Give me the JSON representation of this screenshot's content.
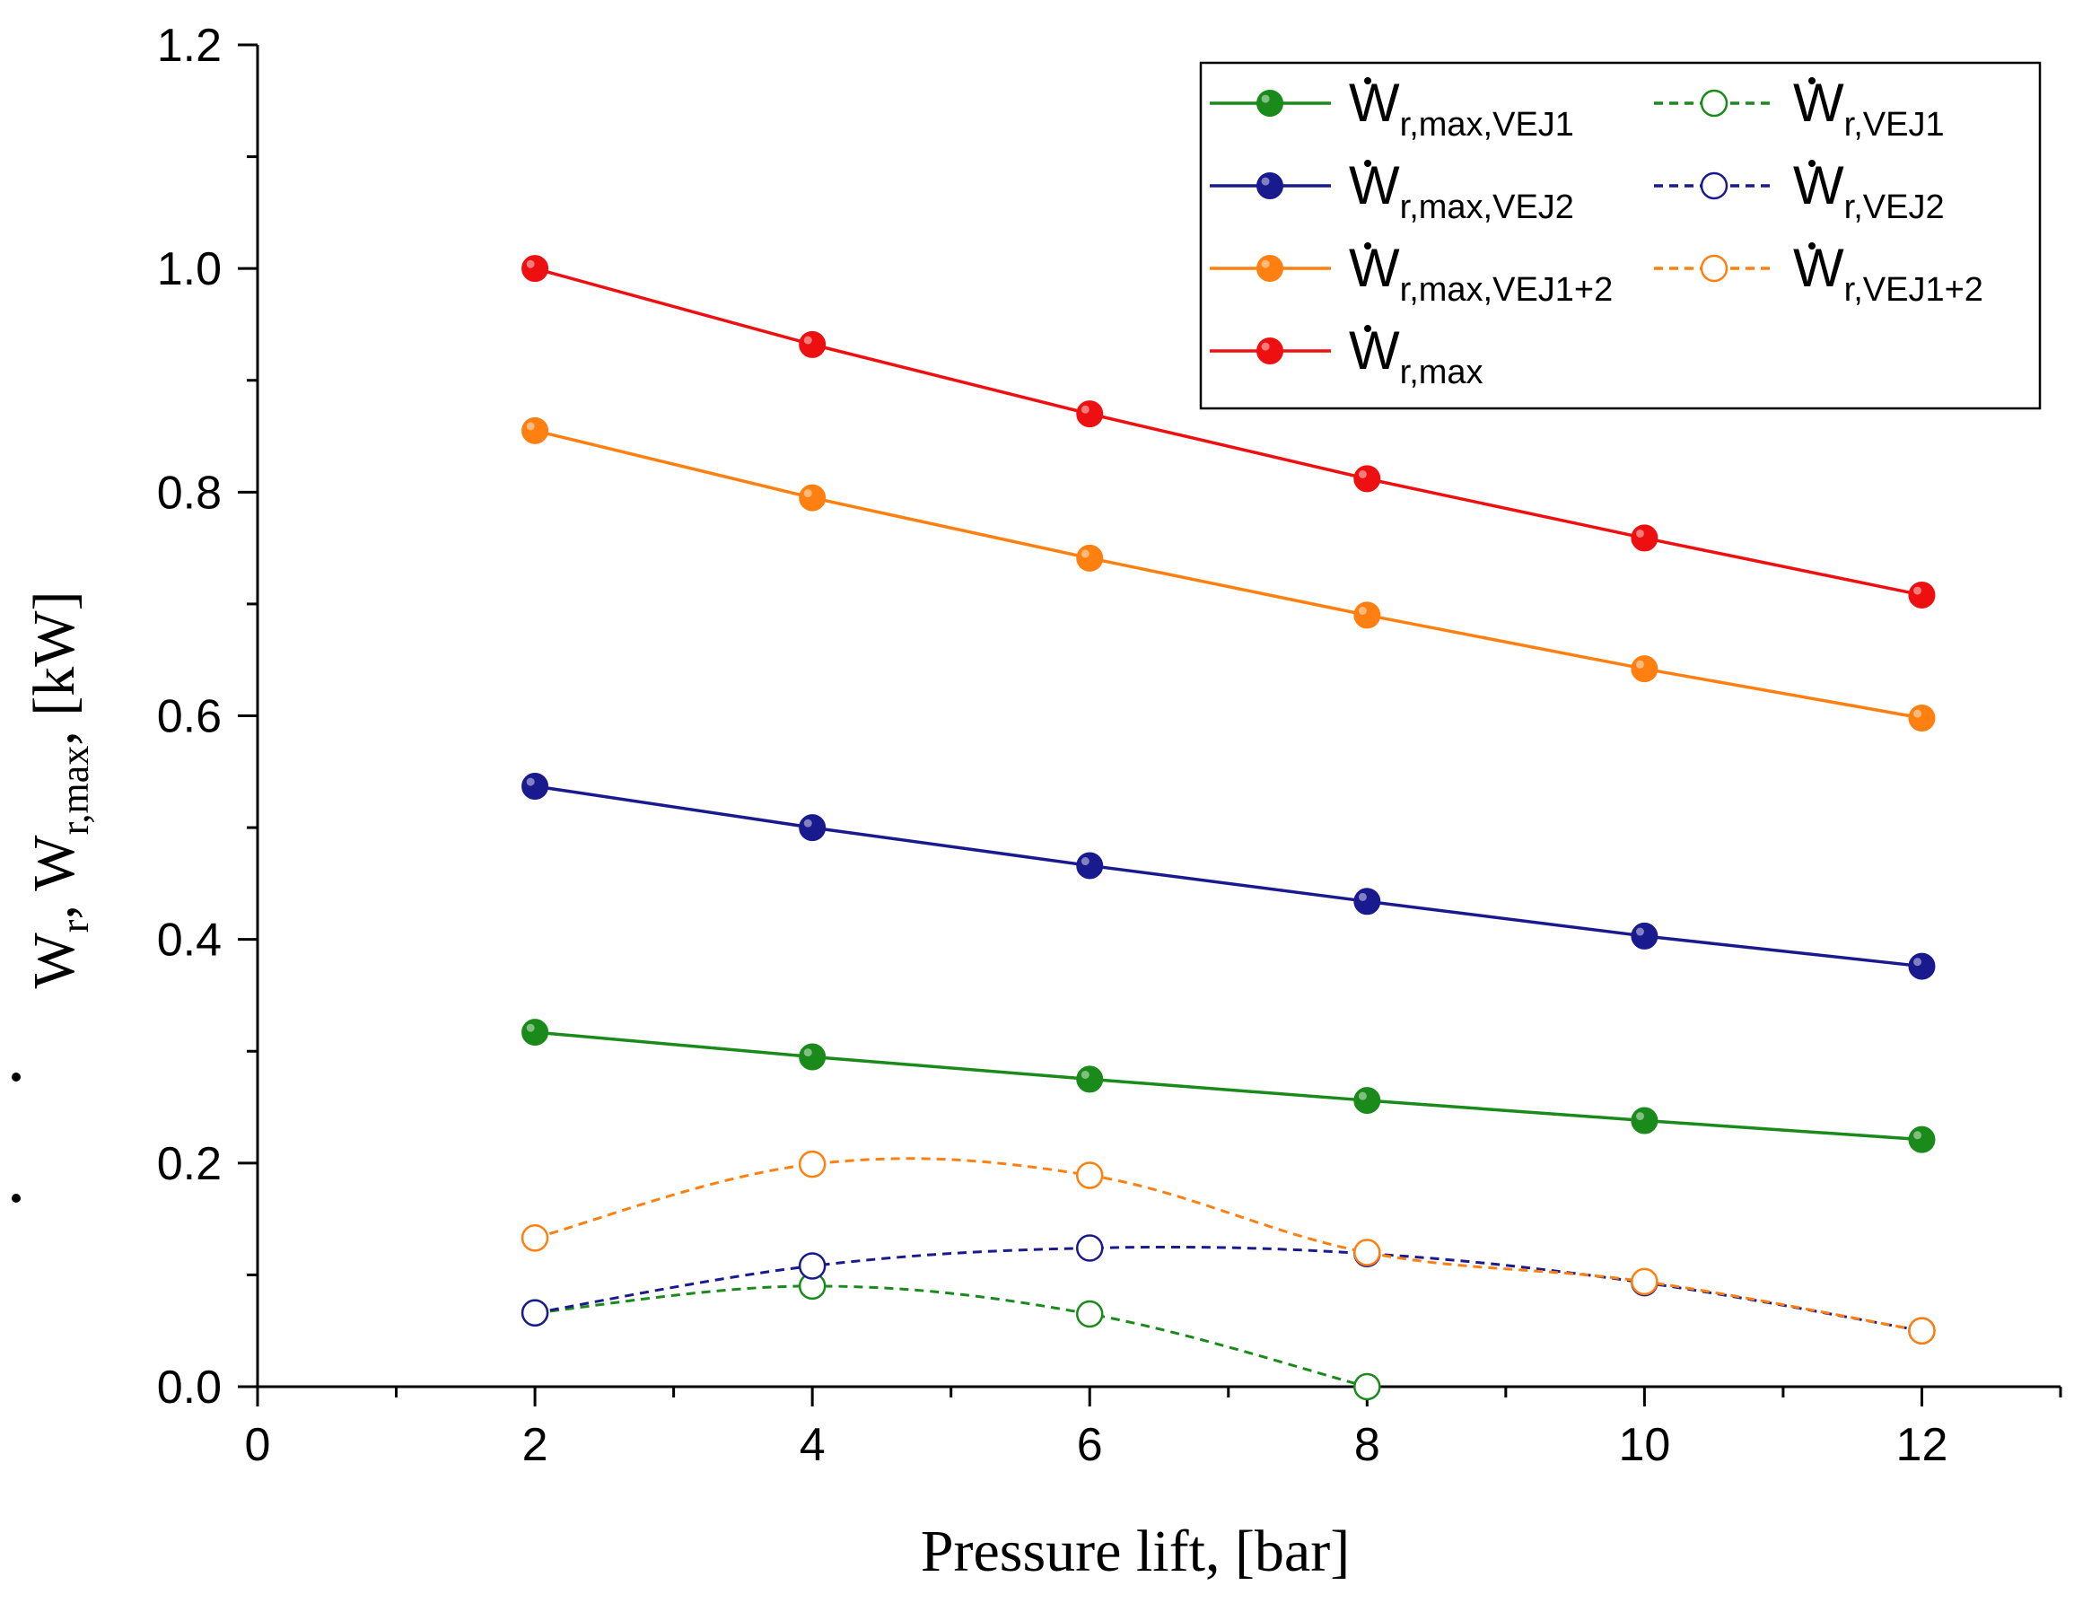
{
  "chart_data": {
    "type": "line",
    "title": "",
    "xlabel": "Pressure lift, [bar]",
    "ylabel": {
      "prefix": "W",
      "sub1": "r",
      "mid": ", W",
      "sub2": "r,max",
      "suffix": ", [kW]"
    },
    "xlim": [
      0,
      13
    ],
    "ylim": [
      0,
      1.2
    ],
    "x_ticks": [
      "0",
      "2",
      "4",
      "6",
      "8",
      "10",
      "12"
    ],
    "y_ticks": [
      "0.0",
      "0.2",
      "0.4",
      "0.6",
      "0.8",
      "1.0",
      "1.2"
    ],
    "grid": false,
    "legend_position": "top-right",
    "series": [
      {
        "id": "wrmax-vej1",
        "main": "W",
        "sub": "r,max,VEJ1",
        "color": "#1a8a1a",
        "style": "solid",
        "marker": "filled",
        "x": [
          2,
          4,
          6,
          8,
          10,
          12
        ],
        "values": [
          0.317,
          0.295,
          0.275,
          0.256,
          0.238,
          0.221
        ]
      },
      {
        "id": "wrmax-vej2",
        "main": "W",
        "sub": "r,max,VEJ2",
        "color": "#1a1a8f",
        "style": "solid",
        "marker": "filled",
        "x": [
          2,
          4,
          6,
          8,
          10,
          12
        ],
        "values": [
          0.537,
          0.5,
          0.466,
          0.434,
          0.403,
          0.376
        ]
      },
      {
        "id": "wrmax-vej12",
        "main": "W",
        "sub": "r,max,VEJ1+2",
        "color": "#ff8010",
        "style": "solid",
        "marker": "filled",
        "x": [
          2,
          4,
          6,
          8,
          10,
          12
        ],
        "values": [
          0.855,
          0.795,
          0.741,
          0.69,
          0.642,
          0.598
        ]
      },
      {
        "id": "wrmax",
        "main": "W",
        "sub": "r,max",
        "color": "#ee1010",
        "style": "solid",
        "marker": "filled",
        "x": [
          2,
          4,
          6,
          8,
          10,
          12
        ],
        "values": [
          1.0,
          0.932,
          0.87,
          0.812,
          0.759,
          0.708
        ]
      },
      {
        "id": "wr-vej1",
        "main": "W",
        "sub": "r,VEJ1",
        "color": "#1a8a1a",
        "style": "dashed",
        "marker": "open",
        "x": [
          2,
          4,
          6,
          8
        ],
        "values": [
          0.066,
          0.09,
          0.065,
          0.0
        ]
      },
      {
        "id": "wr-vej2",
        "main": "W",
        "sub": "r,VEJ2",
        "color": "#1a1a8f",
        "style": "dashed",
        "marker": "open",
        "x": [
          2,
          4,
          6,
          8,
          10,
          12
        ],
        "values": [
          0.066,
          0.108,
          0.124,
          0.119,
          0.093,
          0.05
        ]
      },
      {
        "id": "wr-vej12",
        "main": "W",
        "sub": "r,VEJ1+2",
        "color": "#ff8010",
        "style": "dashed",
        "marker": "open",
        "x": [
          2,
          4,
          6,
          8,
          10,
          12
        ],
        "values": [
          0.133,
          0.199,
          0.189,
          0.12,
          0.094,
          0.05
        ]
      }
    ],
    "legend_columns": [
      [
        "wrmax-vej1",
        "wrmax-vej2",
        "wrmax-vej12",
        "wrmax"
      ],
      [
        "wr-vej1",
        "wr-vej2",
        "wr-vej12"
      ]
    ]
  }
}
